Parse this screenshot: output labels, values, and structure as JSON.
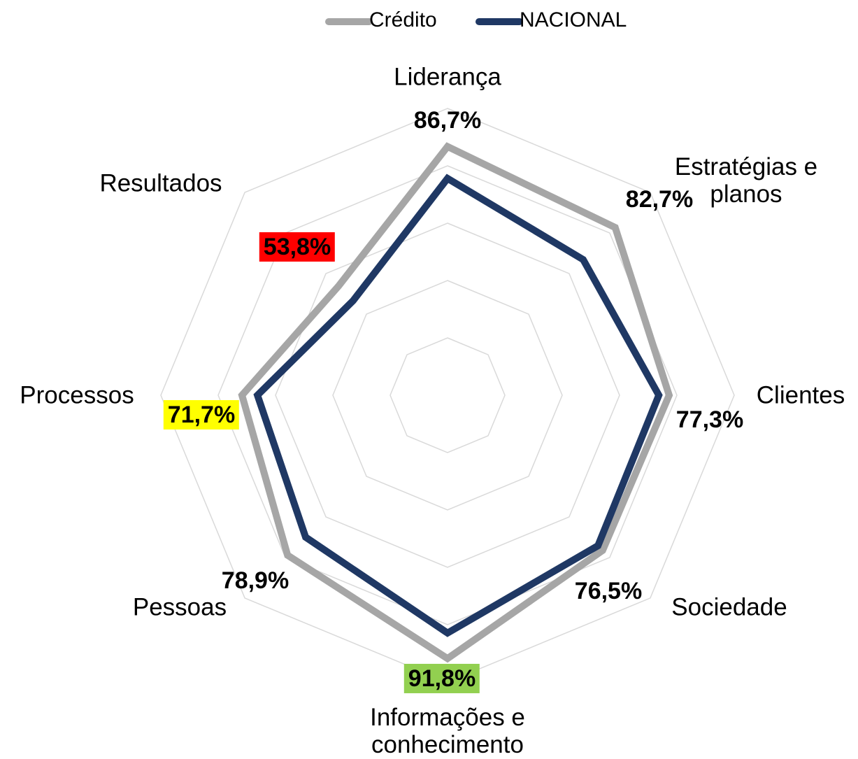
{
  "chart_data": {
    "type": "radar",
    "categories": [
      "Liderança",
      "Estratégias e planos",
      "Clientes",
      "Sociedade",
      "Informações e conhecimento",
      "Pessoas",
      "Processos",
      "Resultados"
    ],
    "series": [
      {
        "name": "Crédito",
        "color": "#a6a6a6",
        "values": [
          86.7,
          82.7,
          77.3,
          76.5,
          91.8,
          78.9,
          71.7,
          53.8
        ],
        "value_labels": [
          "86,7%",
          "82,7%",
          "77,3%",
          "76,5%",
          "91,8%",
          "78,9%",
          "71,7%",
          "53,8%"
        ],
        "value_label_backgrounds": [
          null,
          null,
          null,
          null,
          "#92d050",
          null,
          "#ffff00",
          "#ff0000"
        ]
      },
      {
        "name": "NACIONAL",
        "color": "#1f3864",
        "values": [
          75.6,
          66.9,
          73.7,
          74.2,
          82.9,
          70.0,
          66.3,
          46.6
        ]
      }
    ],
    "ylim": [
      0,
      100
    ],
    "yticks": [
      0,
      20,
      40,
      60,
      80,
      100
    ],
    "grid": true,
    "legend": "top"
  }
}
